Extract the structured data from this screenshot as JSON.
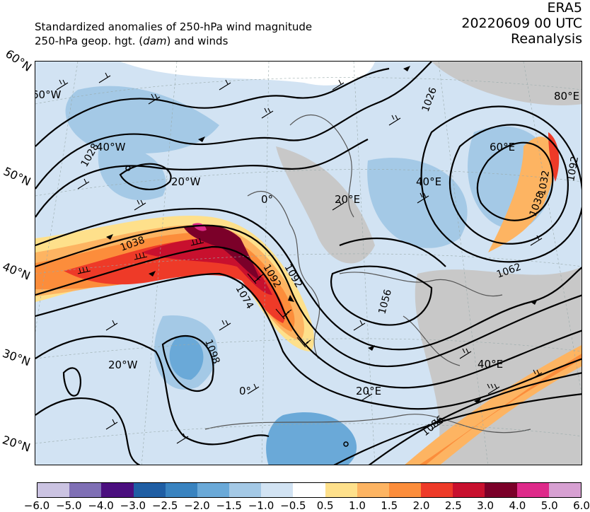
{
  "title": {
    "line1": "Standardized anomalies of 250-hPa wind magnitude",
    "line2_prefix": "250-hPa geop. hgt. (",
    "line2_unit": "dam",
    "line2_suffix": ") and winds",
    "dataset": "ERA5",
    "datetime": "20220609 00 UTC",
    "product": "Reanalysis"
  },
  "lat_labels": [
    "60°N",
    "50°N",
    "40°N",
    "30°N",
    "20°N"
  ],
  "lon_labels_in_map": [
    "60°W",
    "40°W",
    "20°W",
    "0°",
    "20°E",
    "40°E",
    "60°E",
    "80°E",
    "20°W",
    "0°",
    "20°E",
    "40°E"
  ],
  "contour_labels": [
    "1026",
    "1028",
    "1038",
    "1074",
    "1092",
    "1098",
    "1056",
    "1062",
    "1032",
    "1038",
    "1086",
    "1092",
    "1092"
  ],
  "colorbar": {
    "colors": [
      "#cbc3e2",
      "#7f6fb5",
      "#4b0f7f",
      "#1f5ea4",
      "#3983c0",
      "#6aa9d8",
      "#a4c9e6",
      "#d2e3f3",
      "#ffffff",
      "#fee08b",
      "#fdb462",
      "#fc8d3b",
      "#ee3a28",
      "#c8102e",
      "#7b0029",
      "#de2a8a",
      "#d7a0d2"
    ],
    "tick_labels": [
      "−6.0",
      "−5.0",
      "−4.0",
      "−3.0",
      "−2.5",
      "−2.0",
      "−1.5",
      "−1.0",
      "−0.5",
      "0.5",
      "1.0",
      "1.5",
      "2.0",
      "2.5",
      "3.0",
      "4.0",
      "5.0",
      "6.0"
    ]
  }
}
